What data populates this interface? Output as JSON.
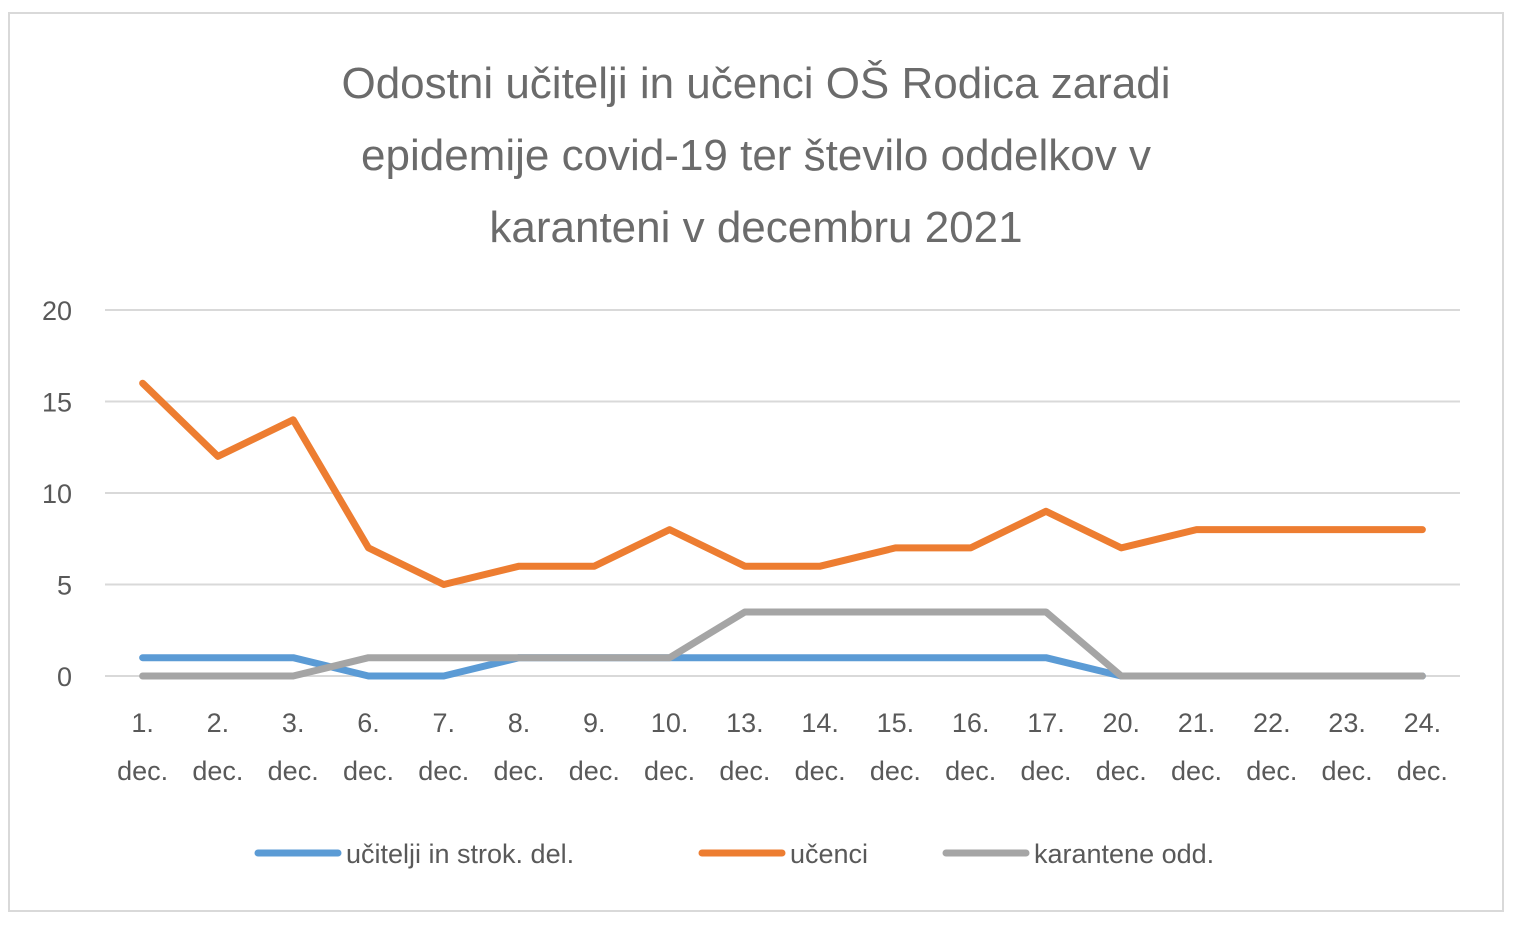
{
  "chart_data": {
    "type": "line",
    "title": "Odostni učitelji in učenci OŠ Rodica zaradi epidemije covid-19 ter število oddelkov v karanteni v decembru 2021",
    "title_lines": [
      "Odostni učitelji in učenci OŠ Rodica zaradi",
      "epidemije covid-19 ter število oddelkov v",
      "karanteni v decembru 2021"
    ],
    "xlabel": "",
    "ylabel": "",
    "categories": [
      [
        "1.",
        "dec."
      ],
      [
        "2.",
        "dec."
      ],
      [
        "3.",
        "dec."
      ],
      [
        "6.",
        "dec."
      ],
      [
        "7.",
        "dec."
      ],
      [
        "8.",
        "dec."
      ],
      [
        "9.",
        "dec."
      ],
      [
        "10.",
        "dec."
      ],
      [
        "13.",
        "dec."
      ],
      [
        "14.",
        "dec."
      ],
      [
        "15.",
        "dec."
      ],
      [
        "16.",
        "dec."
      ],
      [
        "17.",
        "dec."
      ],
      [
        "20.",
        "dec."
      ],
      [
        "21.",
        "dec."
      ],
      [
        "22.",
        "dec."
      ],
      [
        "23.",
        "dec."
      ],
      [
        "24.",
        "dec."
      ]
    ],
    "ylim": [
      0,
      20
    ],
    "yticks": [
      0,
      5,
      10,
      15,
      20
    ],
    "grid": true,
    "legend_position": "bottom",
    "series": [
      {
        "name": "učitelji in strok. del.",
        "color": "#5b9bd5",
        "values": [
          1,
          1,
          1,
          0,
          0,
          1,
          1,
          1,
          1,
          1,
          1,
          1,
          1,
          0,
          0,
          0,
          0,
          0
        ]
      },
      {
        "name": "učenci",
        "color": "#ed7d31",
        "values": [
          16,
          12,
          14,
          7,
          5,
          6,
          6,
          8,
          6,
          6,
          7,
          7,
          9,
          7,
          8,
          8,
          8,
          8
        ]
      },
      {
        "name": "karantene odd.",
        "color": "#a5a5a5",
        "values": [
          0,
          0,
          0,
          1,
          1,
          1,
          1,
          1,
          3.5,
          3.5,
          3.5,
          3.5,
          3.5,
          0,
          0,
          0,
          0,
          0
        ]
      }
    ]
  }
}
